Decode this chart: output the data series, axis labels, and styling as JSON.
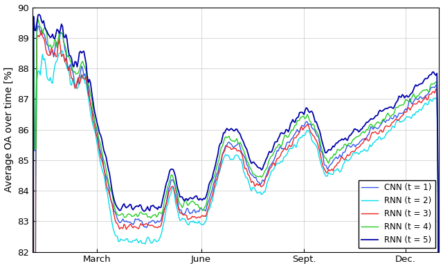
{
  "title": "",
  "ylabel": "Average OA over time [%]",
  "xlabel": "",
  "ylim": [
    82,
    90
  ],
  "yticks": [
    82,
    83,
    84,
    85,
    86,
    87,
    88,
    89,
    90
  ],
  "xtick_labels": [
    "March",
    "June",
    "Sept.",
    "Dec."
  ],
  "legend_labels": [
    "CNN (t = 1)",
    "RNN (t = 2)",
    "RNN (t = 3)",
    "RNN (t = 4)",
    "RNN (t = 5)"
  ],
  "colors": [
    "#3355EE",
    "#00DDEE",
    "#EE2222",
    "#22CC22",
    "#0000AA"
  ],
  "linewidths": [
    1.0,
    1.0,
    1.0,
    1.0,
    1.3
  ],
  "n_points": 365,
  "background_color": "#FFFFFF",
  "grid_color": "#C8C8C8"
}
